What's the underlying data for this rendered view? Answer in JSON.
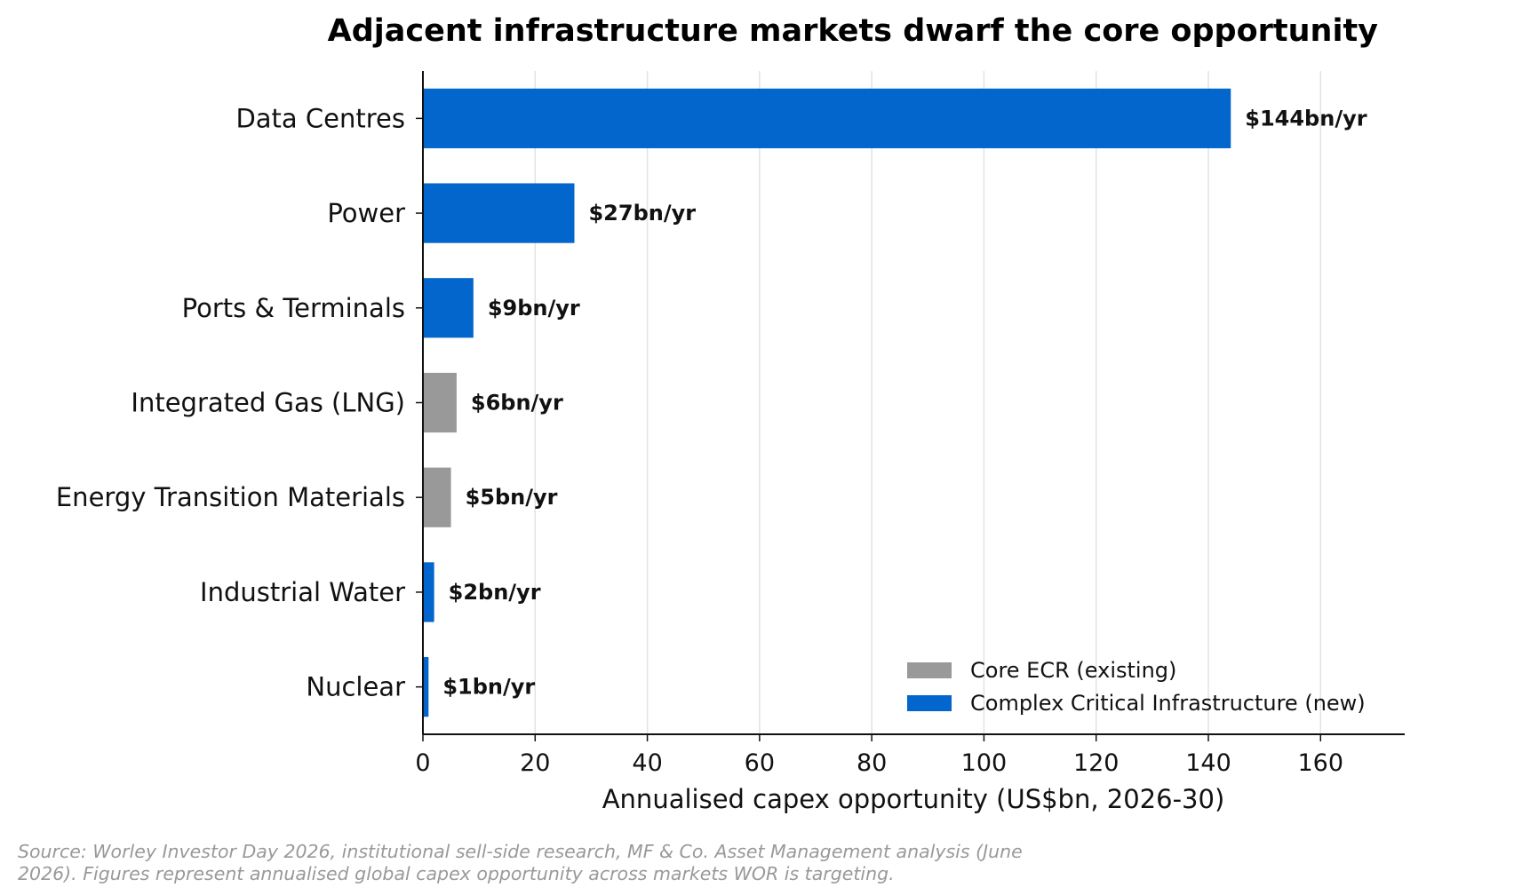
{
  "chart_data": {
    "type": "bar",
    "orientation": "horizontal",
    "title": "Adjacent infrastructure markets dwarf the core opportunity",
    "xlabel": "Annualised capex opportunity (US$bn, 2026-30)",
    "ylabel": "",
    "xlim": [
      0,
      175
    ],
    "xticks": [
      0,
      20,
      40,
      60,
      80,
      100,
      120,
      140,
      160
    ],
    "grid": "vertical",
    "legend_position": "bottom-right",
    "categories": [
      "Data Centres",
      "Power",
      "Ports & Terminals",
      "Integrated Gas (LNG)",
      "Energy Transition Materials",
      "Industrial Water",
      "Nuclear"
    ],
    "values": [
      144,
      27,
      9,
      6,
      5,
      2,
      1
    ],
    "groups": [
      "Complex Critical Infrastructure (new)",
      "Complex Critical Infrastructure (new)",
      "Complex Critical Infrastructure (new)",
      "Core ECR (existing)",
      "Core ECR (existing)",
      "Complex Critical Infrastructure (new)",
      "Complex Critical Infrastructure (new)"
    ],
    "data_labels": [
      "$144bn/yr",
      "$27bn/yr",
      "$9bn/yr",
      "$6bn/yr",
      "$5bn/yr",
      "$2bn/yr",
      "$1bn/yr"
    ],
    "legend": [
      {
        "name": "Core ECR (existing)",
        "color": "#999999"
      },
      {
        "name": "Complex Critical Infrastructure (new)",
        "color": "#0366CC"
      }
    ]
  },
  "source_note": "Source: Worley Investor Day 2026, institutional sell-side research, MF & Co. Asset Management analysis (June 2026). Figures represent annualised global capex opportunity across markets WOR is targeting."
}
